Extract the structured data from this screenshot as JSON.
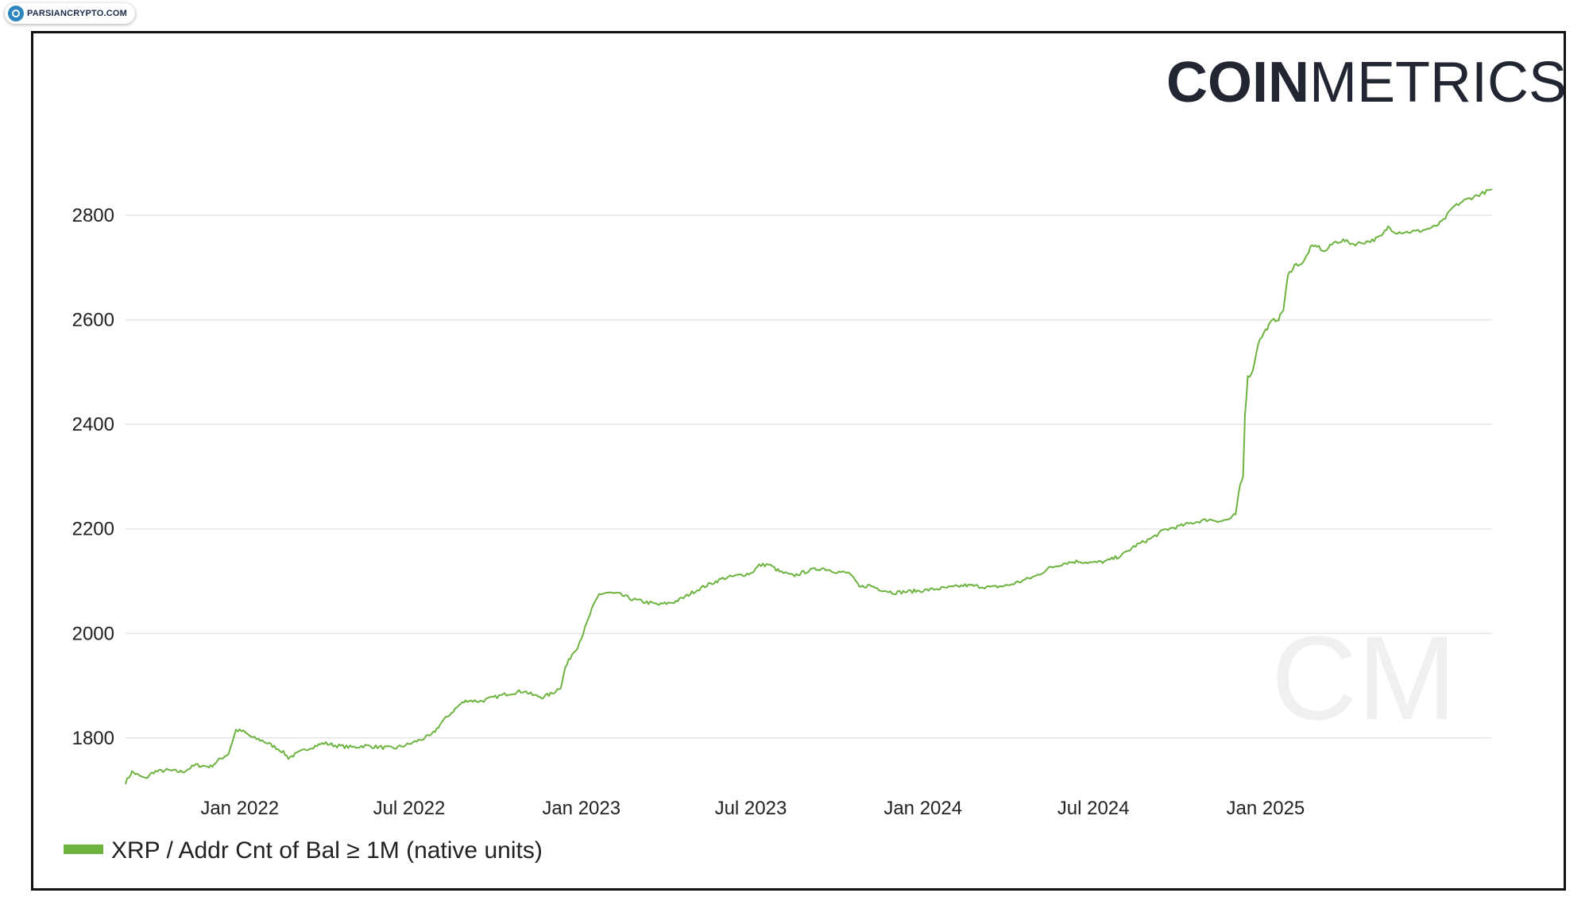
{
  "watermark": {
    "text": "PARSIANCRYPTO.COM",
    "icon": "globe-icon"
  },
  "brand": {
    "bold": "COIN",
    "light": "METRICS",
    "color": "#222633",
    "watermark_text": "CM"
  },
  "chart_data": {
    "type": "line",
    "title": "",
    "xlabel": "",
    "ylabel": "",
    "x_range": [
      "2021-09-01",
      "2025-08-31"
    ],
    "ylim": [
      1710,
      2870
    ],
    "yticks": [
      1800,
      2000,
      2200,
      2400,
      2600,
      2800
    ],
    "xticks": [
      {
        "label": "Jan 2022",
        "date": "2022-01-01"
      },
      {
        "label": "Jul 2022",
        "date": "2022-07-01"
      },
      {
        "label": "Jan 2023",
        "date": "2023-01-01"
      },
      {
        "label": "Jul 2023",
        "date": "2023-07-01"
      },
      {
        "label": "Jan 2024",
        "date": "2024-01-01"
      },
      {
        "label": "Jul 2024",
        "date": "2024-07-01"
      },
      {
        "label": "Jan 2025",
        "date": "2025-01-01"
      }
    ],
    "grid": true,
    "legend_position": "bottom-left",
    "series": [
      {
        "name": "XRP / Addr Cnt of Bal ≥ 1M (native units)",
        "color": "#6db33f",
        "points": [
          [
            "2021-09-01",
            1715
          ],
          [
            "2021-09-08",
            1735
          ],
          [
            "2021-09-15",
            1728
          ],
          [
            "2021-09-22",
            1722
          ],
          [
            "2021-10-01",
            1735
          ],
          [
            "2021-10-15",
            1738
          ],
          [
            "2021-11-01",
            1735
          ],
          [
            "2021-11-15",
            1748
          ],
          [
            "2021-12-01",
            1745
          ],
          [
            "2021-12-10",
            1758
          ],
          [
            "2021-12-20",
            1770
          ],
          [
            "2021-12-28",
            1815
          ],
          [
            "2022-01-05",
            1812
          ],
          [
            "2022-01-15",
            1800
          ],
          [
            "2022-01-25",
            1795
          ],
          [
            "2022-02-05",
            1785
          ],
          [
            "2022-02-15",
            1775
          ],
          [
            "2022-02-22",
            1762
          ],
          [
            "2022-03-01",
            1768
          ],
          [
            "2022-03-15",
            1780
          ],
          [
            "2022-04-01",
            1790
          ],
          [
            "2022-04-15",
            1785
          ],
          [
            "2022-05-01",
            1782
          ],
          [
            "2022-05-15",
            1785
          ],
          [
            "2022-06-01",
            1782
          ],
          [
            "2022-06-15",
            1780
          ],
          [
            "2022-07-01",
            1788
          ],
          [
            "2022-07-15",
            1798
          ],
          [
            "2022-07-25",
            1805
          ],
          [
            "2022-08-05",
            1830
          ],
          [
            "2022-08-15",
            1848
          ],
          [
            "2022-08-25",
            1865
          ],
          [
            "2022-09-01",
            1872
          ],
          [
            "2022-09-15",
            1870
          ],
          [
            "2022-10-01",
            1878
          ],
          [
            "2022-10-15",
            1885
          ],
          [
            "2022-11-01",
            1890
          ],
          [
            "2022-11-10",
            1882
          ],
          [
            "2022-11-20",
            1878
          ],
          [
            "2022-12-01",
            1885
          ],
          [
            "2022-12-10",
            1898
          ],
          [
            "2022-12-15",
            1935
          ],
          [
            "2022-12-22",
            1960
          ],
          [
            "2022-12-28",
            1975
          ],
          [
            "2023-01-05",
            2010
          ],
          [
            "2023-01-12",
            2045
          ],
          [
            "2023-01-20",
            2075
          ],
          [
            "2023-01-28",
            2078
          ],
          [
            "2023-02-10",
            2075
          ],
          [
            "2023-02-25",
            2065
          ],
          [
            "2023-03-10",
            2060
          ],
          [
            "2023-03-25",
            2055
          ],
          [
            "2023-04-10",
            2060
          ],
          [
            "2023-04-20",
            2068
          ],
          [
            "2023-05-01",
            2080
          ],
          [
            "2023-05-15",
            2092
          ],
          [
            "2023-06-01",
            2105
          ],
          [
            "2023-06-15",
            2110
          ],
          [
            "2023-07-01",
            2115
          ],
          [
            "2023-07-10",
            2130
          ],
          [
            "2023-07-20",
            2132
          ],
          [
            "2023-08-01",
            2118
          ],
          [
            "2023-08-15",
            2110
          ],
          [
            "2023-09-01",
            2120
          ],
          [
            "2023-09-15",
            2125
          ],
          [
            "2023-10-01",
            2118
          ],
          [
            "2023-10-15",
            2115
          ],
          [
            "2023-10-25",
            2088
          ],
          [
            "2023-11-05",
            2092
          ],
          [
            "2023-11-15",
            2085
          ],
          [
            "2023-12-01",
            2078
          ],
          [
            "2023-12-15",
            2080
          ],
          [
            "2024-01-01",
            2082
          ],
          [
            "2024-01-15",
            2085
          ],
          [
            "2024-02-01",
            2088
          ],
          [
            "2024-02-15",
            2092
          ],
          [
            "2024-03-01",
            2090
          ],
          [
            "2024-03-15",
            2088
          ],
          [
            "2024-04-01",
            2092
          ],
          [
            "2024-04-15",
            2100
          ],
          [
            "2024-05-01",
            2110
          ],
          [
            "2024-05-15",
            2125
          ],
          [
            "2024-06-01",
            2135
          ],
          [
            "2024-06-15",
            2138
          ],
          [
            "2024-07-01",
            2135
          ],
          [
            "2024-07-15",
            2138
          ],
          [
            "2024-08-01",
            2150
          ],
          [
            "2024-08-15",
            2168
          ],
          [
            "2024-09-01",
            2182
          ],
          [
            "2024-09-15",
            2198
          ],
          [
            "2024-10-01",
            2205
          ],
          [
            "2024-10-15",
            2212
          ],
          [
            "2024-11-01",
            2218
          ],
          [
            "2024-11-15",
            2215
          ],
          [
            "2024-11-25",
            2220
          ],
          [
            "2024-11-30",
            2228
          ],
          [
            "2024-12-05",
            2285
          ],
          [
            "2024-12-08",
            2300
          ],
          [
            "2024-12-10",
            2420
          ],
          [
            "2024-12-13",
            2490
          ],
          [
            "2024-12-18",
            2500
          ],
          [
            "2024-12-24",
            2555
          ],
          [
            "2025-01-01",
            2580
          ],
          [
            "2025-01-08",
            2598
          ],
          [
            "2025-01-15",
            2602
          ],
          [
            "2025-01-20",
            2620
          ],
          [
            "2025-01-25",
            2685
          ],
          [
            "2025-02-01",
            2705
          ],
          [
            "2025-02-10",
            2708
          ],
          [
            "2025-02-18",
            2738
          ],
          [
            "2025-02-25",
            2742
          ],
          [
            "2025-03-05",
            2730
          ],
          [
            "2025-03-15",
            2748
          ],
          [
            "2025-03-25",
            2752
          ],
          [
            "2025-04-05",
            2745
          ],
          [
            "2025-04-15",
            2748
          ],
          [
            "2025-04-25",
            2752
          ],
          [
            "2025-05-05",
            2760
          ],
          [
            "2025-05-12",
            2778
          ],
          [
            "2025-05-20",
            2768
          ],
          [
            "2025-06-01",
            2768
          ],
          [
            "2025-06-15",
            2770
          ],
          [
            "2025-07-01",
            2778
          ],
          [
            "2025-07-10",
            2790
          ],
          [
            "2025-07-20",
            2815
          ],
          [
            "2025-08-01",
            2828
          ],
          [
            "2025-08-15",
            2838
          ],
          [
            "2025-08-31",
            2850
          ]
        ]
      }
    ]
  }
}
